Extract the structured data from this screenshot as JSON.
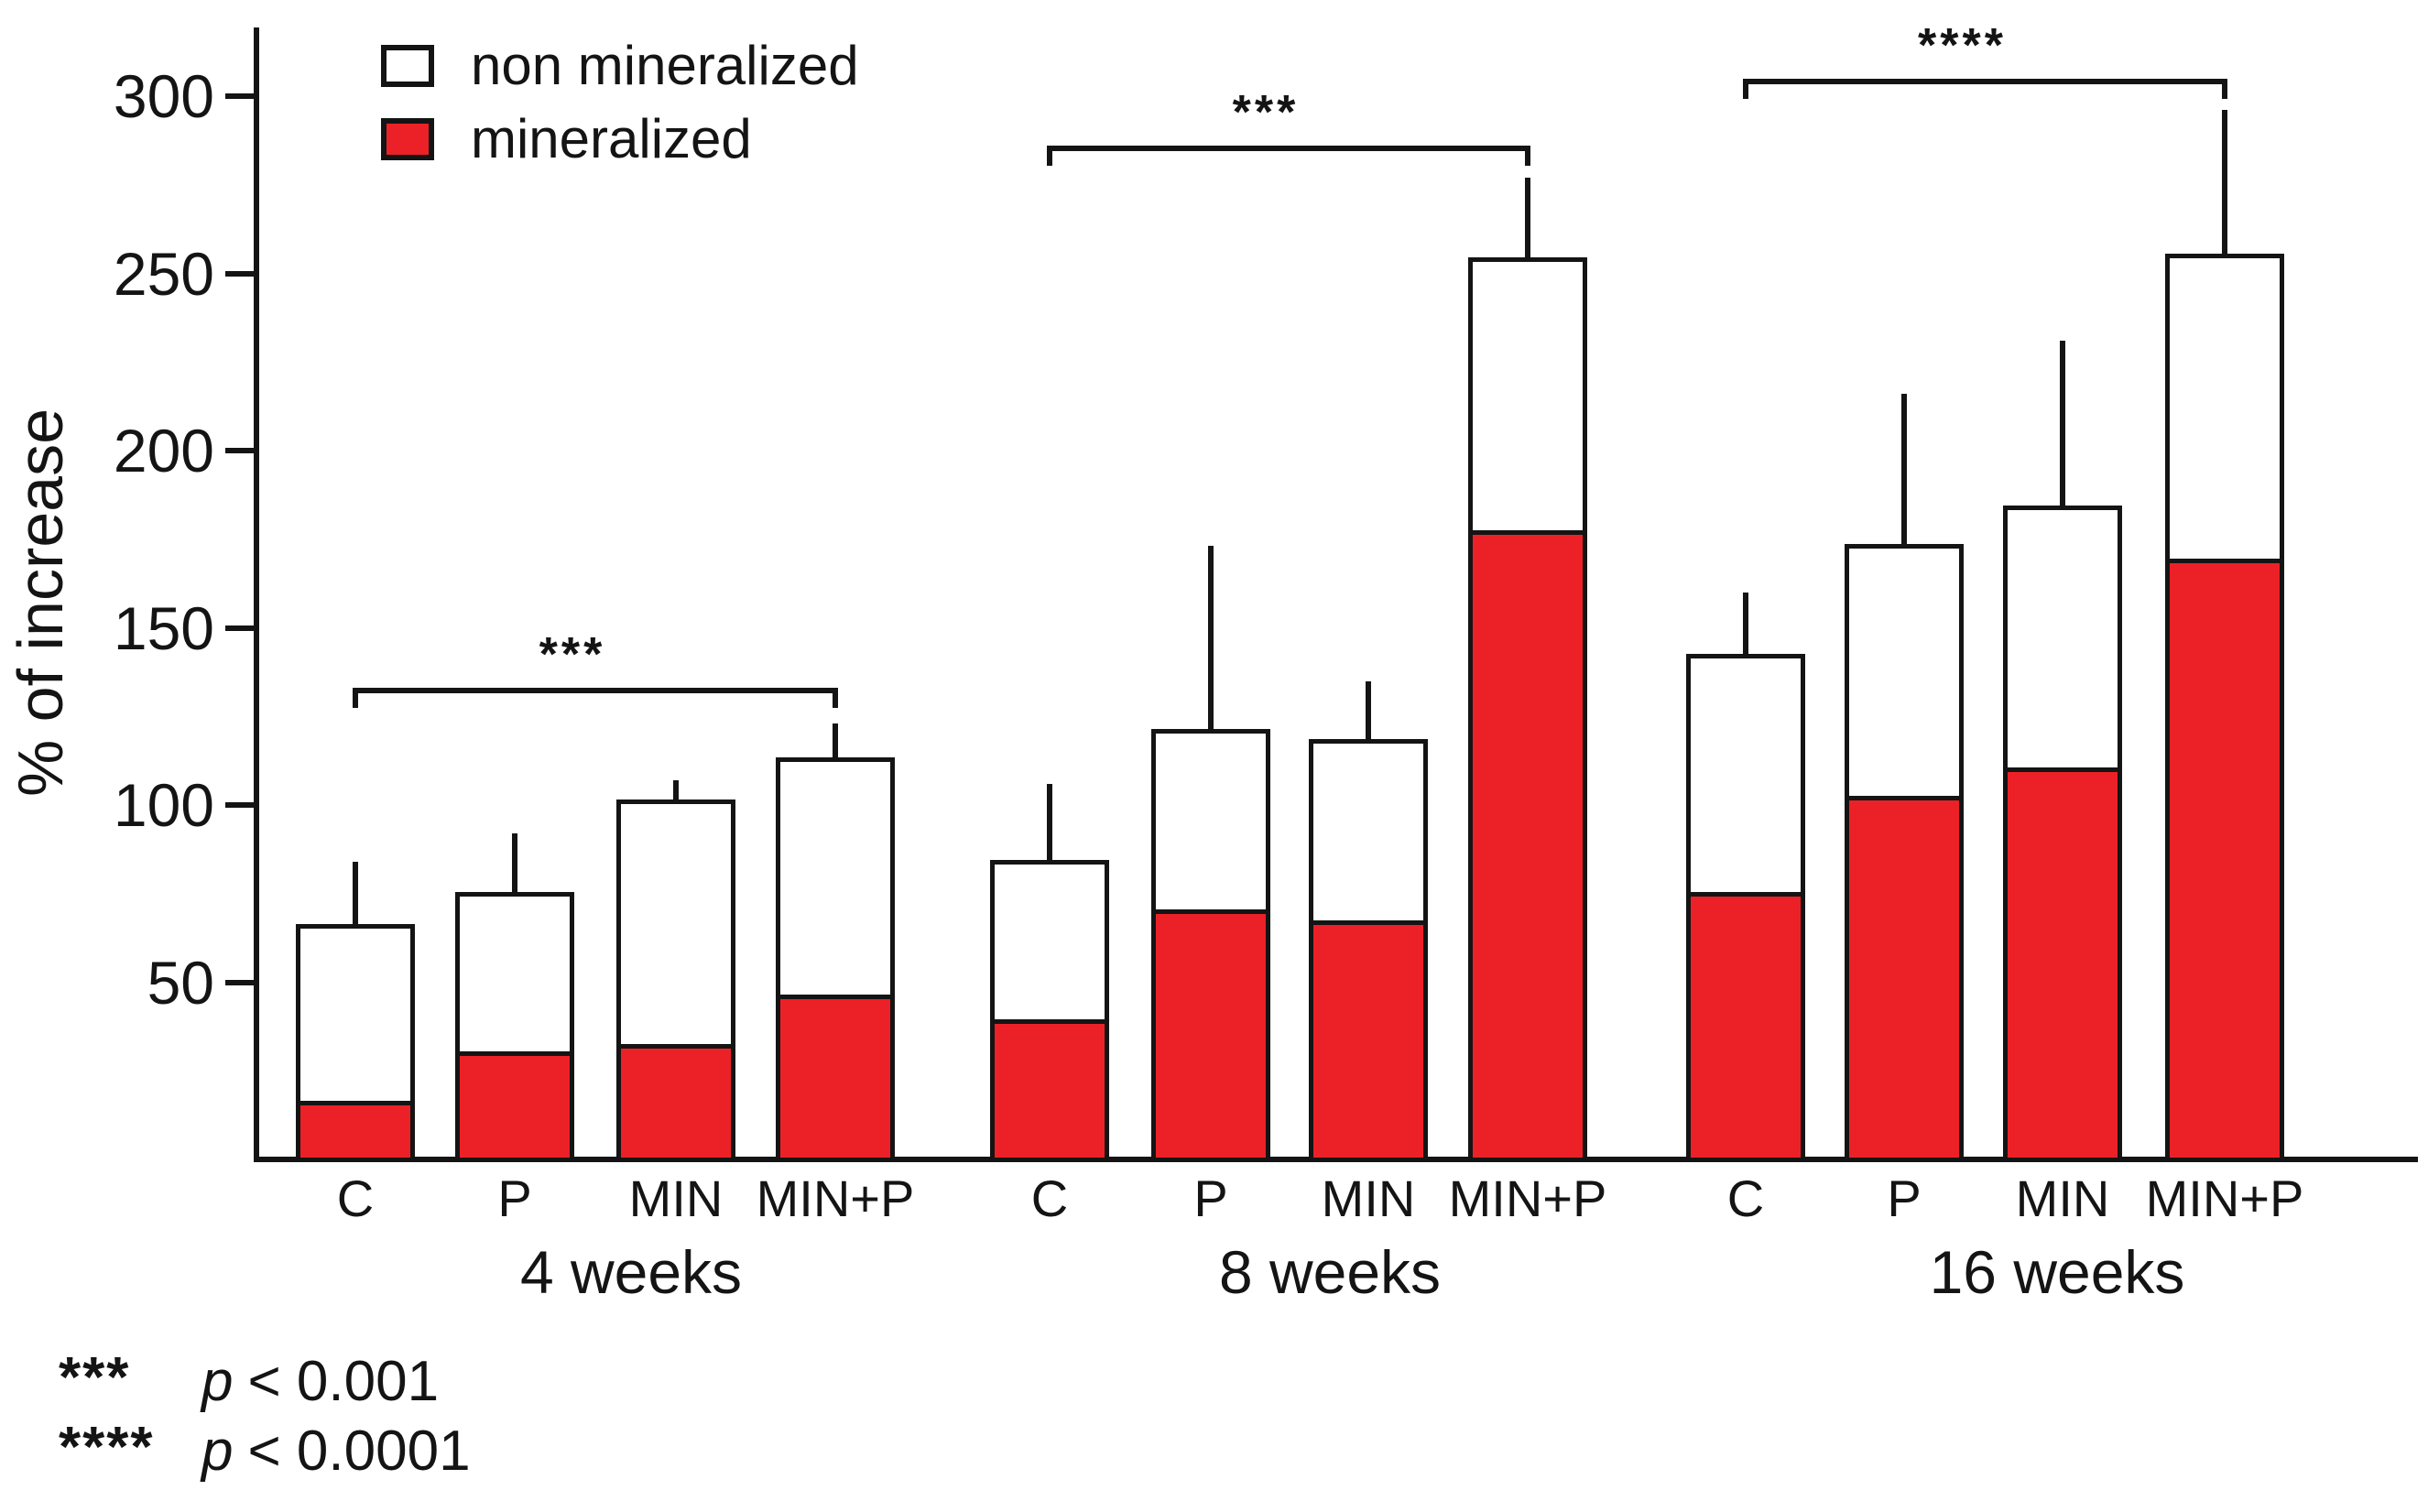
{
  "page": {
    "background": "#ffffff"
  },
  "colors": {
    "mineralized_red": "#EC2127",
    "non_mineralized_white": "#FFFFFF",
    "line_black": "#141414"
  },
  "chart_data": {
    "type": "bar",
    "stacked": true,
    "title": "",
    "xlabel": "",
    "ylabel": "% of increase",
    "ylim": [
      0,
      320
    ],
    "yticks": [
      50,
      100,
      150,
      200,
      250,
      300
    ],
    "grid": false,
    "legend": {
      "position": "top-left",
      "entries": [
        {
          "label": "non mineralized",
          "color": "#FFFFFF"
        },
        {
          "label": "mineralized",
          "color": "#EC2127"
        }
      ]
    },
    "groups": [
      {
        "label": "4 weeks",
        "categories": [
          "C",
          "P",
          "MIN",
          "MIN+P"
        ],
        "bars": [
          {
            "category": "C",
            "mineralized": 16,
            "non_mineralized": 50,
            "total": 66,
            "error_top": 84
          },
          {
            "category": "P",
            "mineralized": 30,
            "non_mineralized": 45,
            "total": 75,
            "error_top": 92
          },
          {
            "category": "MIN",
            "mineralized": 32,
            "non_mineralized": 69,
            "total": 101,
            "error_top": 107
          },
          {
            "category": "MIN+P",
            "mineralized": 46,
            "non_mineralized": 67,
            "total": 113,
            "error_top": 123
          }
        ]
      },
      {
        "label": "8 weeks",
        "categories": [
          "C",
          "P",
          "MIN",
          "MIN+P"
        ],
        "bars": [
          {
            "category": "C",
            "mineralized": 39,
            "non_mineralized": 45,
            "total": 84,
            "error_top": 106
          },
          {
            "category": "P",
            "mineralized": 70,
            "non_mineralized": 51,
            "total": 121,
            "error_top": 173
          },
          {
            "category": "MIN",
            "mineralized": 67,
            "non_mineralized": 51,
            "total": 118,
            "error_top": 135
          },
          {
            "category": "MIN+P",
            "mineralized": 177,
            "non_mineralized": 77,
            "total": 254,
            "error_top": 277
          }
        ]
      },
      {
        "label": "16 weeks",
        "categories": [
          "C",
          "P",
          "MIN",
          "MIN+P"
        ],
        "bars": [
          {
            "category": "C",
            "mineralized": 75,
            "non_mineralized": 67,
            "total": 142,
            "error_top": 160
          },
          {
            "category": "P",
            "mineralized": 102,
            "non_mineralized": 71,
            "total": 173,
            "error_top": 216
          },
          {
            "category": "MIN",
            "mineralized": 110,
            "non_mineralized": 74,
            "total": 184,
            "error_top": 231
          },
          {
            "category": "MIN+P",
            "mineralized": 169,
            "non_mineralized": 86,
            "total": 255,
            "error_top": 296
          }
        ]
      }
    ],
    "significance": [
      {
        "group_index": 0,
        "group": "4 weeks",
        "from": "C",
        "to": "MIN+P",
        "symbol": "***",
        "y_value": 133
      },
      {
        "group_index": 1,
        "group": "8 weeks",
        "from": "C",
        "to": "MIN+P",
        "symbol": "***",
        "y_value": 286
      },
      {
        "group_index": 2,
        "group": "16 weeks",
        "from": "C",
        "to": "MIN+P",
        "symbol": "****",
        "y_value": 305
      }
    ],
    "footnotes": [
      {
        "symbol": "***",
        "p_label": "p",
        "condition": "< 0.001"
      },
      {
        "symbol": "****",
        "p_label": "p",
        "condition": "< 0.0001"
      }
    ]
  }
}
